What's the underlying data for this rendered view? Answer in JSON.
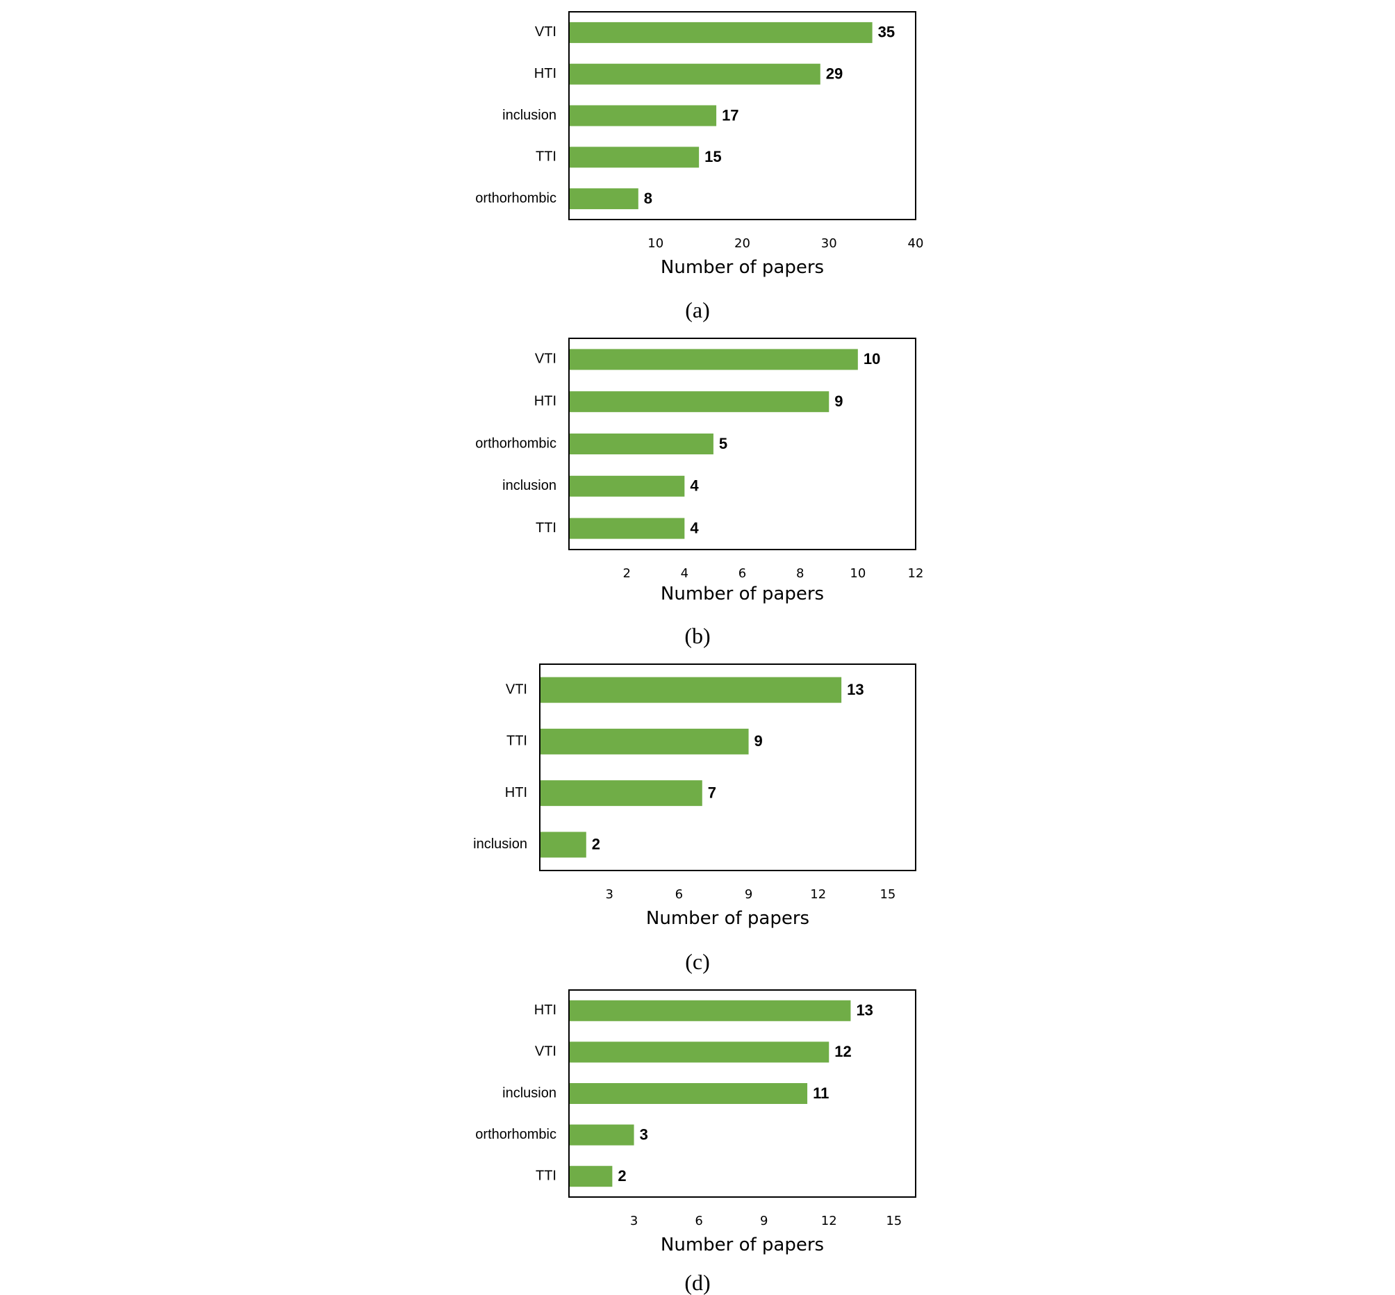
{
  "colors": {
    "bar": "#70ad47",
    "frame": "#000000",
    "text": "#000000"
  },
  "chart_data": [
    {
      "type": "bar",
      "orientation": "horizontal",
      "caption": "(a)",
      "categories": [
        "VTI",
        "HTI",
        "inclusion",
        "TTI",
        "orthorhombic"
      ],
      "values": [
        35,
        29,
        17,
        15,
        8
      ],
      "data_labels": [
        "35",
        "29",
        "17",
        "15",
        "8"
      ],
      "xlabel": "Number of papers",
      "xlim": [
        0,
        40
      ],
      "xticks": [
        10,
        20,
        30,
        40
      ],
      "tick_labels": [
        "10",
        "20",
        "30",
        "40"
      ],
      "grid": false,
      "legend": "none"
    },
    {
      "type": "bar",
      "orientation": "horizontal",
      "caption": "(b)",
      "categories": [
        "VTI",
        "HTI",
        "orthorhombic",
        "inclusion",
        "TTI"
      ],
      "values": [
        10,
        9,
        5,
        4,
        4
      ],
      "data_labels": [
        "10",
        "9",
        "5",
        "4",
        "4"
      ],
      "xlabel": "Number of papers",
      "xlim": [
        0,
        12
      ],
      "xticks": [
        2,
        4,
        6,
        8,
        10,
        12
      ],
      "tick_labels": [
        "2",
        "4",
        "6",
        "8",
        "10",
        "12"
      ],
      "grid": false,
      "legend": "none"
    },
    {
      "type": "bar",
      "orientation": "horizontal",
      "caption": "(c)",
      "categories": [
        "VTI",
        "TTI",
        "HTI",
        "inclusion"
      ],
      "values": [
        13,
        9,
        7,
        2
      ],
      "data_labels": [
        "13",
        "9",
        "7",
        "2"
      ],
      "xlabel": "Number of papers",
      "xlim": [
        0,
        16.2
      ],
      "xticks": [
        3,
        6,
        9,
        12,
        15
      ],
      "tick_labels": [
        "3",
        "6",
        "9",
        "12",
        "15"
      ],
      "grid": false,
      "legend": "none"
    },
    {
      "type": "bar",
      "orientation": "horizontal",
      "caption": "(d)",
      "categories": [
        "HTI",
        "VTI",
        "inclusion",
        "orthorhombic",
        "TTI"
      ],
      "values": [
        13,
        12,
        11,
        3,
        2
      ],
      "data_labels": [
        "13",
        "12",
        "11",
        "3",
        "2"
      ],
      "xlabel": "Number of papers",
      "xlim": [
        0,
        16
      ],
      "xticks": [
        3,
        6,
        9,
        12,
        15
      ],
      "tick_labels": [
        "3",
        "6",
        "9",
        "12",
        "15"
      ],
      "grid": false,
      "legend": "none"
    }
  ]
}
